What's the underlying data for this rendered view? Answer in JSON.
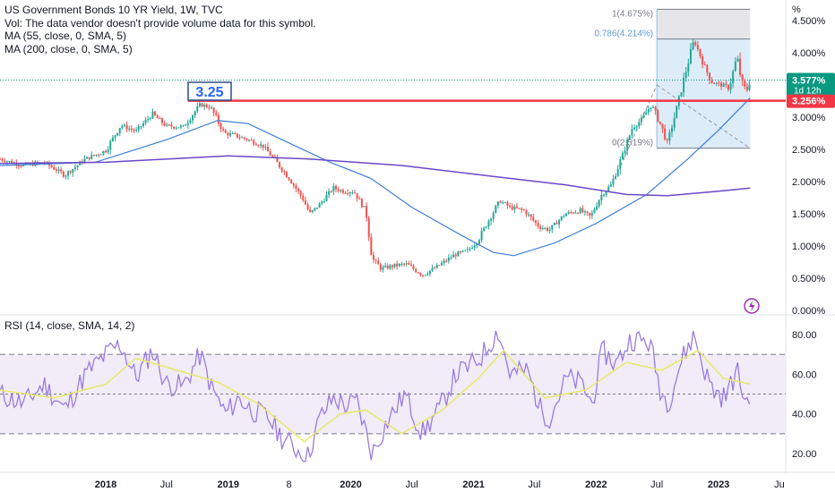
{
  "legend": {
    "title": "US Government Bonds 10 YR Yield, 1W, TVC",
    "vol": "Vol: The data vendor doesn't provide volume data for this symbol.",
    "ma55": "MA (55, close, 0, SMA, 5)",
    "ma200": "MA (200, close, 0, SMA, 5)",
    "rsi": "RSI (14, close, SMA, 14, 2)"
  },
  "colors": {
    "up": "#26a69a",
    "down": "#ef5350",
    "ma55": "#3f7fd8",
    "ma200": "#6a48c8",
    "rsi": "#9c7be0",
    "rsi_ma": "#e8e86a",
    "rsi_band": "#ede7f6",
    "hline": "#f23645",
    "fib_box": "#dcecf8",
    "accent_label": "#2962ff",
    "price_label": "#089981"
  },
  "annotations": {
    "level_box": "3.25",
    "fib_1": "1(4.675%)",
    "fib_0786": "0.786(4.214%)",
    "fib_0": "0(2.519%)",
    "last_price": "3.577%",
    "countdown": "1d 12h",
    "level_price": "3.256%",
    "unit": "%",
    "lightning_icon": "lightning-icon"
  },
  "chart_data": [
    {
      "type": "candlestick",
      "title": "US Government Bonds 10 YR Yield, 1W, TVC",
      "ylim": [
        0,
        4.75
      ],
      "y_ticks": [
        "0.000%",
        "0.500%",
        "1.000%",
        "1.500%",
        "2.000%",
        "2.500%",
        "3.000%",
        "3.500%",
        "4.000%",
        "4.500%"
      ],
      "y_tick_values": [
        0,
        0.5,
        1.0,
        1.5,
        2.0,
        2.5,
        3.0,
        3.5,
        4.0,
        4.5
      ],
      "x_ticks": [
        "2018",
        "Jul",
        "2019",
        "8",
        "2020",
        "Jul",
        "2021",
        "Jul",
        "2022",
        "Jul",
        "2023",
        "Ju"
      ],
      "x_tick_dates": [
        "2018-01-01",
        "2018-07-01",
        "2019-01-01",
        "2019-07-01",
        "2020-01-01",
        "2020-07-01",
        "2021-01-01",
        "2021-07-01",
        "2022-01-01",
        "2022-07-01",
        "2023-01-01",
        "2023-07-01"
      ],
      "x_range": [
        "2017-02-20",
        "2023-07-20"
      ],
      "close_series": [
        [
          "2017-02-20",
          2.35
        ],
        [
          "2017-05-01",
          2.25
        ],
        [
          "2017-07-01",
          2.3
        ],
        [
          "2017-09-01",
          2.1
        ],
        [
          "2017-11-01",
          2.35
        ],
        [
          "2018-01-01",
          2.48
        ],
        [
          "2018-02-15",
          2.88
        ],
        [
          "2018-04-01",
          2.78
        ],
        [
          "2018-05-20",
          3.05
        ],
        [
          "2018-07-01",
          2.86
        ],
        [
          "2018-08-20",
          2.85
        ],
        [
          "2018-10-10",
          3.2
        ],
        [
          "2018-11-10",
          3.15
        ],
        [
          "2018-12-20",
          2.75
        ],
        [
          "2019-01-20",
          2.72
        ],
        [
          "2019-03-01",
          2.65
        ],
        [
          "2019-04-15",
          2.55
        ],
        [
          "2019-05-25",
          2.3
        ],
        [
          "2019-07-01",
          2.05
        ],
        [
          "2019-08-10",
          1.75
        ],
        [
          "2019-09-01",
          1.5
        ],
        [
          "2019-10-01",
          1.65
        ],
        [
          "2019-11-10",
          1.9
        ],
        [
          "2019-12-10",
          1.85
        ],
        [
          "2020-01-10",
          1.85
        ],
        [
          "2020-02-15",
          1.55
        ],
        [
          "2020-03-05",
          0.8
        ],
        [
          "2020-04-01",
          0.65
        ],
        [
          "2020-05-15",
          0.7
        ],
        [
          "2020-06-15",
          0.72
        ],
        [
          "2020-08-01",
          0.55
        ],
        [
          "2020-09-15",
          0.68
        ],
        [
          "2020-11-01",
          0.85
        ],
        [
          "2020-12-15",
          0.93
        ],
        [
          "2021-01-15",
          1.1
        ],
        [
          "2021-02-20",
          1.45
        ],
        [
          "2021-03-20",
          1.7
        ],
        [
          "2021-04-20",
          1.6
        ],
        [
          "2021-06-01",
          1.55
        ],
        [
          "2021-07-15",
          1.3
        ],
        [
          "2021-08-15",
          1.25
        ],
        [
          "2021-10-01",
          1.5
        ],
        [
          "2021-11-15",
          1.55
        ],
        [
          "2021-12-15",
          1.45
        ],
        [
          "2022-01-15",
          1.78
        ],
        [
          "2022-02-15",
          1.95
        ],
        [
          "2022-03-20",
          2.4
        ],
        [
          "2022-04-20",
          2.85
        ],
        [
          "2022-05-15",
          2.95
        ],
        [
          "2022-06-15",
          3.2
        ],
        [
          "2022-07-15",
          2.85
        ],
        [
          "2022-08-01",
          2.6
        ],
        [
          "2022-08-25",
          3.05
        ],
        [
          "2022-09-25",
          3.7
        ],
        [
          "2022-10-20",
          4.2
        ],
        [
          "2022-11-15",
          3.85
        ],
        [
          "2022-12-10",
          3.55
        ],
        [
          "2023-01-10",
          3.5
        ],
        [
          "2023-02-01",
          3.45
        ],
        [
          "2023-02-25",
          3.95
        ],
        [
          "2023-03-10",
          3.55
        ],
        [
          "2023-03-25",
          3.4
        ],
        [
          "2023-04-05",
          3.577
        ]
      ],
      "series": [
        {
          "name": "MA (55, close, 0, SMA, 5)",
          "values": [
            [
              "2017-02-20",
              2.25
            ],
            [
              "2017-12-01",
              2.3
            ],
            [
              "2018-07-01",
              2.65
            ],
            [
              "2018-12-01",
              2.95
            ],
            [
              "2019-03-01",
              2.9
            ],
            [
              "2019-07-01",
              2.6
            ],
            [
              "2019-11-01",
              2.3
            ],
            [
              "2020-03-01",
              2.05
            ],
            [
              "2020-07-01",
              1.6
            ],
            [
              "2020-12-01",
              1.15
            ],
            [
              "2021-03-01",
              0.9
            ],
            [
              "2021-05-01",
              0.85
            ],
            [
              "2021-09-01",
              1.05
            ],
            [
              "2022-01-01",
              1.35
            ],
            [
              "2022-06-01",
              1.8
            ],
            [
              "2022-10-01",
              2.35
            ],
            [
              "2023-01-01",
              2.8
            ],
            [
              "2023-04-05",
              3.3
            ]
          ]
        },
        {
          "name": "MA (200, close, 0, SMA, 5)",
          "values": [
            [
              "2017-02-20",
              2.28
            ],
            [
              "2018-01-01",
              2.3
            ],
            [
              "2019-01-01",
              2.4
            ],
            [
              "2019-09-01",
              2.35
            ],
            [
              "2020-06-01",
              2.25
            ],
            [
              "2021-03-01",
              2.08
            ],
            [
              "2021-10-01",
              1.95
            ],
            [
              "2022-04-01",
              1.8
            ],
            [
              "2022-08-01",
              1.78
            ],
            [
              "2023-01-01",
              1.85
            ],
            [
              "2023-04-05",
              1.9
            ]
          ]
        }
      ],
      "horizontal_line": 3.256,
      "fib_retracement": {
        "levels": [
          "0(2.519%)",
          "0.786(4.214%)",
          "1(4.675%)"
        ],
        "values": [
          2.519,
          4.214,
          4.675
        ],
        "start": "2022-07-01",
        "end": "2023-04-05"
      },
      "last_value": 3.577
    },
    {
      "type": "line",
      "title": "RSI (14, close, SMA, 14, 2)",
      "ylim": [
        15,
        85
      ],
      "y_ticks": [
        "20.00",
        "40.00",
        "60.00",
        "80.00"
      ],
      "y_tick_values": [
        20,
        40,
        60,
        80
      ],
      "bands": [
        30,
        50,
        70
      ],
      "series": [
        {
          "name": "RSI",
          "values": [
            [
              "2017-02-20",
              50
            ],
            [
              "2017-05-01",
              45
            ],
            [
              "2017-07-01",
              55
            ],
            [
              "2017-09-01",
              42
            ],
            [
              "2017-11-01",
              60
            ],
            [
              "2018-01-15",
              72
            ],
            [
              "2018-02-15",
              75
            ],
            [
              "2018-04-01",
              58
            ],
            [
              "2018-05-20",
              72
            ],
            [
              "2018-07-01",
              55
            ],
            [
              "2018-08-20",
              54
            ],
            [
              "2018-10-10",
              70
            ],
            [
              "2018-11-15",
              52
            ],
            [
              "2018-12-25",
              40
            ],
            [
              "2019-02-01",
              48
            ],
            [
              "2019-03-10",
              42
            ],
            [
              "2019-05-01",
              38
            ],
            [
              "2019-06-10",
              28
            ],
            [
              "2019-08-25",
              18
            ],
            [
              "2019-10-01",
              38
            ],
            [
              "2019-11-10",
              48
            ],
            [
              "2019-12-20",
              44
            ],
            [
              "2020-01-20",
              46
            ],
            [
              "2020-03-05",
              20
            ],
            [
              "2020-04-15",
              35
            ],
            [
              "2020-06-10",
              50
            ],
            [
              "2020-08-01",
              30
            ],
            [
              "2020-09-20",
              42
            ],
            [
              "2020-11-10",
              60
            ],
            [
              "2020-12-20",
              64
            ],
            [
              "2021-01-20",
              68
            ],
            [
              "2021-03-15",
              82
            ],
            [
              "2021-04-20",
              60
            ],
            [
              "2021-06-10",
              62
            ],
            [
              "2021-07-20",
              42
            ],
            [
              "2021-08-15",
              38
            ],
            [
              "2021-10-05",
              58
            ],
            [
              "2021-11-20",
              55
            ],
            [
              "2021-12-20",
              45
            ],
            [
              "2022-01-20",
              72
            ],
            [
              "2022-03-01",
              65
            ],
            [
              "2022-04-15",
              78
            ],
            [
              "2022-06-10",
              76
            ],
            [
              "2022-07-15",
              50
            ],
            [
              "2022-08-05",
              46
            ],
            [
              "2022-09-10",
              66
            ],
            [
              "2022-10-20",
              80
            ],
            [
              "2022-11-20",
              62
            ],
            [
              "2022-12-15",
              52
            ],
            [
              "2023-01-20",
              48
            ],
            [
              "2023-02-25",
              62
            ],
            [
              "2023-03-15",
              50
            ],
            [
              "2023-03-25",
              45
            ],
            [
              "2023-04-05",
              52
            ]
          ]
        },
        {
          "name": "RSI MA",
          "values": [
            [
              "2017-02-20",
              52
            ],
            [
              "2017-08-01",
              48
            ],
            [
              "2018-01-01",
              55
            ],
            [
              "2018-04-01",
              68
            ],
            [
              "2018-08-01",
              62
            ],
            [
              "2018-12-01",
              56
            ],
            [
              "2019-04-01",
              45
            ],
            [
              "2019-08-15",
              26
            ],
            [
              "2019-12-01",
              40
            ],
            [
              "2020-02-15",
              42
            ],
            [
              "2020-06-01",
              30
            ],
            [
              "2020-10-01",
              42
            ],
            [
              "2021-01-15",
              58
            ],
            [
              "2021-04-01",
              72
            ],
            [
              "2021-08-01",
              48
            ],
            [
              "2021-12-01",
              52
            ],
            [
              "2022-04-01",
              66
            ],
            [
              "2022-07-15",
              62
            ],
            [
              "2022-11-01",
              72
            ],
            [
              "2023-01-15",
              58
            ],
            [
              "2023-04-05",
              55
            ]
          ]
        }
      ]
    }
  ]
}
